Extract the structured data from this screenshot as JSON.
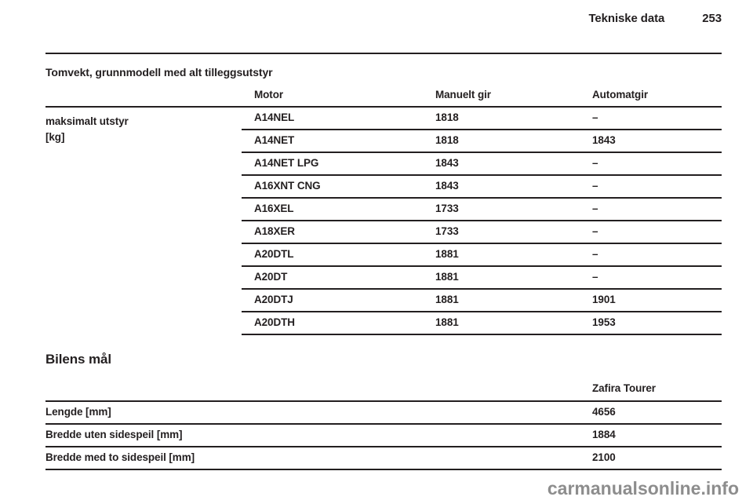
{
  "header": {
    "title": "Tekniske data",
    "page_number": "253"
  },
  "weight_table": {
    "title": "Tomvekt, grunnmodell med alt tilleggsutstyr",
    "stub": {
      "line1": "maksimalt utstyr",
      "line2": "[kg]"
    },
    "columns": {
      "motor": "Motor",
      "manual": "Manuelt gir",
      "automatic": "Automatgir"
    },
    "rows": [
      {
        "motor": "A14NEL",
        "manual": "1818",
        "automatic": "–"
      },
      {
        "motor": "A14NET",
        "manual": "1818",
        "automatic": "1843"
      },
      {
        "motor": "A14NET LPG",
        "manual": "1843",
        "automatic": "–"
      },
      {
        "motor": "A16XNT CNG",
        "manual": "1843",
        "automatic": "–"
      },
      {
        "motor": "A16XEL",
        "manual": "1733",
        "automatic": "–"
      },
      {
        "motor": "A18XER",
        "manual": "1733",
        "automatic": "–"
      },
      {
        "motor": "A20DTL",
        "manual": "1881",
        "automatic": "–"
      },
      {
        "motor": "A20DT",
        "manual": "1881",
        "automatic": "–"
      },
      {
        "motor": "A20DTJ",
        "manual": "1881",
        "automatic": "1901"
      },
      {
        "motor": "A20DTH",
        "manual": "1881",
        "automatic": "1953"
      }
    ]
  },
  "dimensions_table": {
    "title": "Bilens mål",
    "column_header": "Zafira Tourer",
    "rows": [
      {
        "label": "Lengde [mm]",
        "value": "4656"
      },
      {
        "label": "Bredde uten sidespeil [mm]",
        "value": "1884"
      },
      {
        "label": "Bredde med to sidespeil [mm]",
        "value": "2100"
      }
    ]
  },
  "watermark": "carmanualsonline.info",
  "colors": {
    "text": "#231f20",
    "rule": "#231f20",
    "watermark": "#8d8d8d",
    "background": "#ffffff"
  }
}
